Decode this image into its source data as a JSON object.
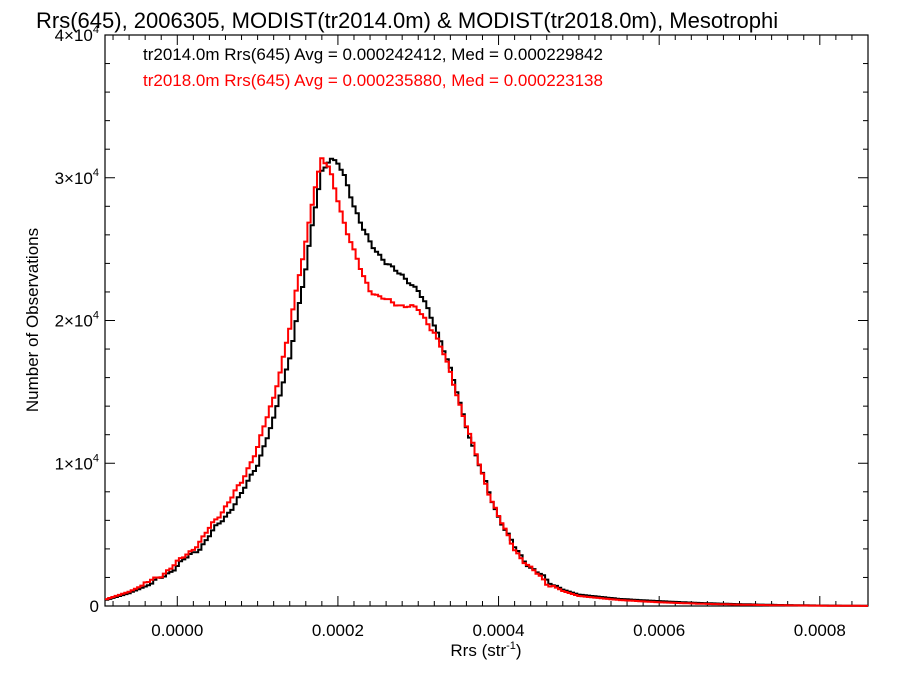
{
  "chart_data": {
    "type": "line",
    "title": "Rrs(645), 2006305, MODIST(tr2014.0m) & MODIST(tr2018.0m), Mesotrophi",
    "xlabel": "Rrs (str",
    "xlabel_sup": "-1",
    "xlabel_close": ")",
    "ylabel": "Number of Observations",
    "xlim": [
      -9e-05,
      0.00086
    ],
    "ylim": [
      0,
      40000
    ],
    "xticks": [
      {
        "value": 0.0,
        "label": "0.0000"
      },
      {
        "value": 0.0002,
        "label": "0.0002"
      },
      {
        "value": 0.0004,
        "label": "0.0004"
      },
      {
        "value": 0.0006,
        "label": "0.0006"
      },
      {
        "value": 0.0008,
        "label": "0.0008"
      }
    ],
    "yticks": [
      {
        "value": 0,
        "mant": "0",
        "exp": ""
      },
      {
        "value": 10000,
        "mant": "1×10",
        "exp": "4"
      },
      {
        "value": 20000,
        "mant": "2×10",
        "exp": "4"
      },
      {
        "value": 30000,
        "mant": "3×10",
        "exp": "4"
      },
      {
        "value": 40000,
        "mant": "4×10",
        "exp": "4"
      }
    ],
    "grid": false,
    "legend_position": "top-left",
    "series": [
      {
        "name": "tr2014.0m Rrs(645) Avg = 0.000242412, Med = 0.000229842",
        "color": "#000000",
        "x": [
          -9e-05,
          -6e-05,
          -3e-05,
          0.0,
          3e-05,
          6e-05,
          8e-05,
          0.0001,
          0.00012,
          0.00014,
          0.00016,
          0.00017,
          0.00018,
          0.00019,
          0.0002,
          0.00021,
          0.00022,
          0.00023,
          0.00024,
          0.00025,
          0.00026,
          0.00027,
          0.00028,
          0.00029,
          0.0003,
          0.00031,
          0.00032,
          0.00033,
          0.00034,
          0.00035,
          0.00036,
          0.00037,
          0.00038,
          0.00039,
          0.0004,
          0.00041,
          0.00042,
          0.00044,
          0.00046,
          0.00048,
          0.0005,
          0.00055,
          0.0006,
          0.00065,
          0.0007,
          0.00075,
          0.0008,
          0.00086
        ],
        "y": [
          400,
          900,
          1600,
          2800,
          4200,
          6300,
          7800,
          10000,
          13000,
          17500,
          23500,
          27500,
          30500,
          31200,
          31000,
          30000,
          28000,
          26500,
          25500,
          24800,
          24000,
          23500,
          23200,
          22700,
          22000,
          21000,
          19800,
          18300,
          16500,
          14600,
          12700,
          10800,
          9200,
          7700,
          6300,
          5100,
          4100,
          2700,
          1800,
          1150,
          800,
          500,
          340,
          210,
          130,
          70,
          35,
          10
        ]
      },
      {
        "name": "tr2018.0m Rrs(645) Avg = 0.000235880, Med = 0.000223138",
        "color": "#ff0000",
        "x": [
          -9e-05,
          -6e-05,
          -3e-05,
          0.0,
          3e-05,
          6e-05,
          8e-05,
          0.0001,
          0.00012,
          0.00014,
          0.00016,
          0.00017,
          0.00018,
          0.00019,
          0.0002,
          0.00021,
          0.00022,
          0.00023,
          0.00024,
          0.00025,
          0.00026,
          0.00027,
          0.00028,
          0.00029,
          0.0003,
          0.00031,
          0.00032,
          0.00033,
          0.00034,
          0.00035,
          0.00036,
          0.00037,
          0.00038,
          0.00039,
          0.0004,
          0.00041,
          0.00042,
          0.00044,
          0.00046,
          0.00048,
          0.0005,
          0.00055,
          0.0006,
          0.00065,
          0.0007,
          0.00075,
          0.0008,
          0.00086
        ],
        "y": [
          450,
          1000,
          1800,
          3000,
          4600,
          7000,
          8600,
          11200,
          14500,
          19500,
          25500,
          29000,
          31300,
          30500,
          28500,
          26500,
          24800,
          23300,
          22200,
          21700,
          21400,
          21200,
          21100,
          21000,
          20700,
          20000,
          19200,
          17900,
          16300,
          14500,
          12700,
          10900,
          9200,
          7700,
          6300,
          5000,
          4000,
          2600,
          1650,
          1050,
          700,
          420,
          260,
          160,
          95,
          50,
          25,
          8
        ]
      }
    ]
  }
}
